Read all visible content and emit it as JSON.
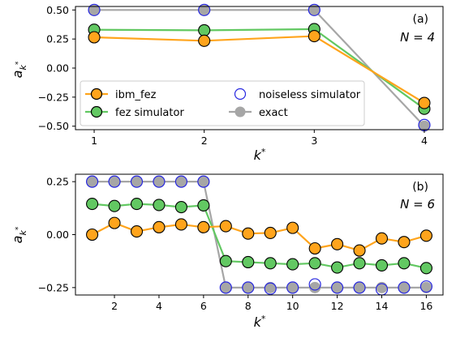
{
  "colors": {
    "ibm": "#ffa41c",
    "fez": "#62c862",
    "noiseless": "#2727e0",
    "exact": "#a6a6a6"
  },
  "legend": {
    "ibm_label": "ibm_fez",
    "fez_label": "fez simulator",
    "noiseless_label": "noiseless simulator",
    "exact_label": "exact"
  },
  "chart_data": [
    {
      "type": "line",
      "panel_label": "(a)",
      "n_label": "N = 4",
      "xlabel": "k*",
      "ylabel": "a_{k*}",
      "xlim": [
        0.83,
        4.17
      ],
      "ylim": [
        -0.53,
        0.53
      ],
      "x_ticks": [
        1,
        2,
        3,
        4
      ],
      "y_ticks": [
        0.5,
        0.25,
        0.0,
        -0.25,
        -0.5
      ],
      "y_tick_labels": [
        "0.50",
        "0.25",
        "0.00",
        "−0.25",
        "−0.50"
      ],
      "legend_position": "lower-left",
      "x": [
        1,
        2,
        3,
        4
      ],
      "series": [
        {
          "name": "exact",
          "key": "exact",
          "values": [
            0.5,
            0.5,
            0.5,
            -0.5
          ]
        },
        {
          "name": "ibm_fez",
          "key": "ibm",
          "values": [
            0.265,
            0.235,
            0.275,
            -0.3
          ]
        },
        {
          "name": "fez simulator",
          "key": "fez",
          "values": [
            0.33,
            0.325,
            0.335,
            -0.35
          ]
        },
        {
          "name": "noiseless simulator",
          "key": "noiseless",
          "values": [
            0.5,
            0.5,
            0.5,
            -0.49
          ]
        }
      ]
    },
    {
      "type": "line",
      "panel_label": "(b)",
      "n_label": "N = 6",
      "xlabel": "k*",
      "ylabel": "a_{k*}",
      "xlim": [
        0.25,
        16.75
      ],
      "ylim": [
        -0.285,
        0.285
      ],
      "x_ticks": [
        2,
        4,
        6,
        8,
        10,
        12,
        14,
        16
      ],
      "y_ticks": [
        0.25,
        0.0,
        -0.25
      ],
      "y_tick_labels": [
        "0.25",
        "0.00",
        "−0.25"
      ],
      "x": [
        1,
        2,
        3,
        4,
        5,
        6,
        7,
        8,
        9,
        10,
        11,
        12,
        13,
        14,
        15,
        16
      ],
      "series": [
        {
          "name": "exact",
          "key": "exact",
          "values": [
            0.25,
            0.25,
            0.25,
            0.25,
            0.25,
            0.25,
            -0.25,
            -0.25,
            -0.25,
            -0.25,
            -0.25,
            -0.25,
            -0.25,
            -0.25,
            -0.25,
            -0.25
          ]
        },
        {
          "name": "ibm_fez",
          "key": "ibm",
          "values": [
            0.0,
            0.055,
            0.015,
            0.035,
            0.048,
            0.035,
            0.04,
            0.005,
            0.008,
            0.032,
            -0.065,
            -0.045,
            -0.075,
            -0.018,
            -0.035,
            -0.005
          ]
        },
        {
          "name": "fez simulator",
          "key": "fez",
          "values": [
            0.145,
            0.135,
            0.145,
            0.14,
            0.13,
            0.138,
            -0.125,
            -0.13,
            -0.135,
            -0.14,
            -0.135,
            -0.155,
            -0.135,
            -0.145,
            -0.135,
            -0.158
          ]
        },
        {
          "name": "noiseless simulator",
          "key": "noiseless",
          "values": [
            0.25,
            0.25,
            0.25,
            0.25,
            0.25,
            0.25,
            -0.25,
            -0.25,
            -0.255,
            -0.25,
            -0.235,
            -0.25,
            -0.25,
            -0.258,
            -0.25,
            -0.245
          ]
        }
      ]
    }
  ]
}
